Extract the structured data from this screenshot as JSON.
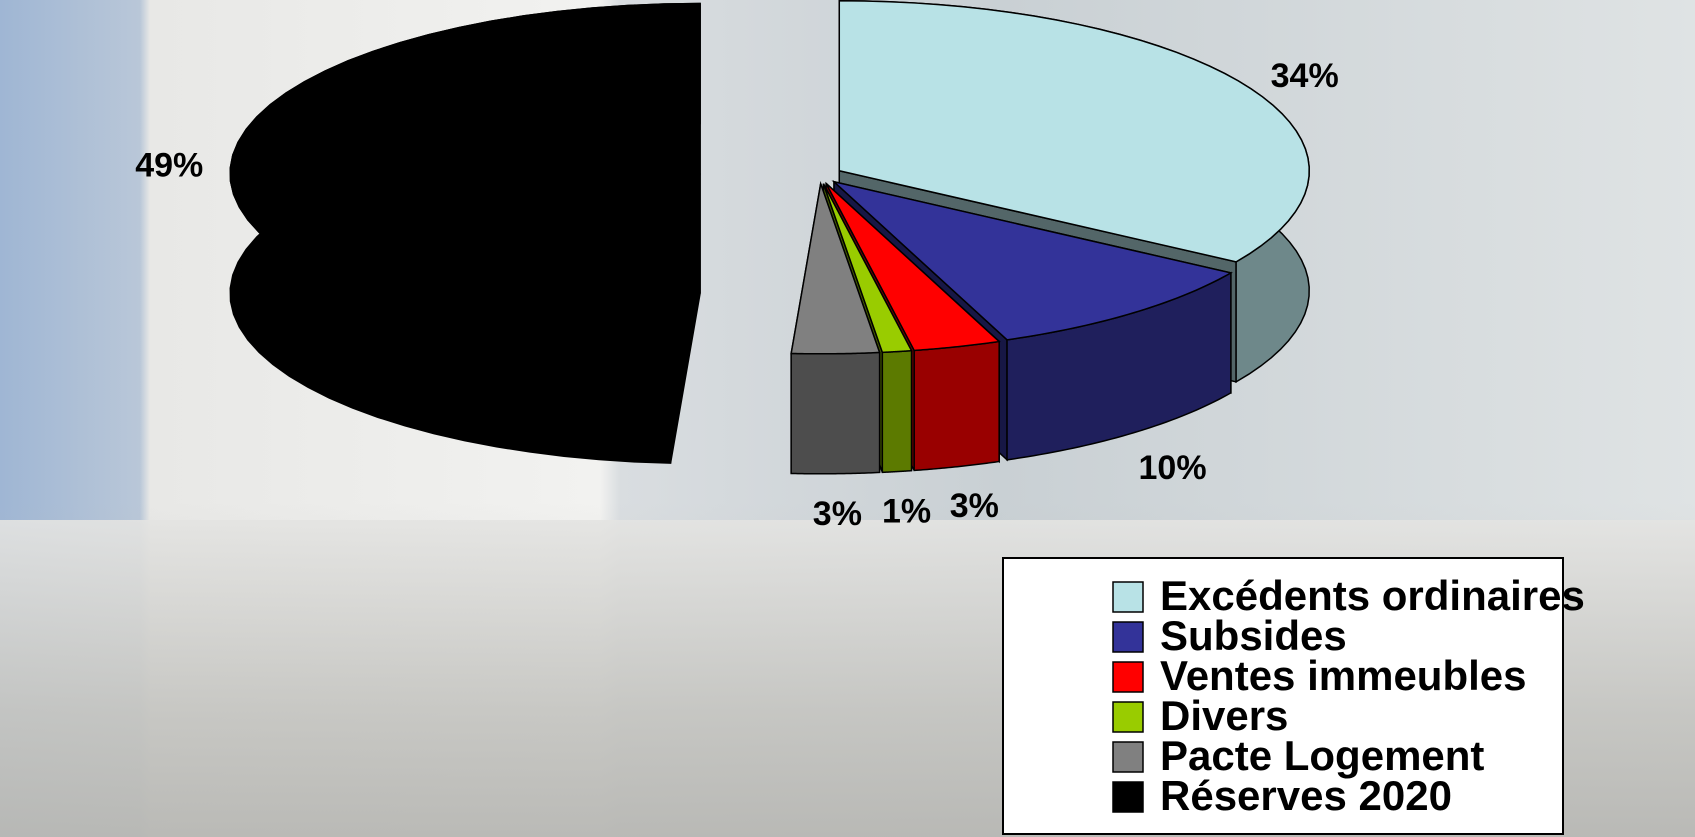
{
  "chart_data": {
    "type": "pie",
    "categories": [
      "Excédents ordinaires",
      "Subsides",
      "Ventes immeubles",
      "Divers",
      "Pacte Logement",
      "Réserves 2020"
    ],
    "values": [
      34,
      10,
      3,
      1,
      3,
      49
    ],
    "value_labels": [
      "34%",
      "10%",
      "3%",
      "1%",
      "3%",
      "49%"
    ],
    "colors": [
      "#b8e2e6",
      "#333399",
      "#ff0000",
      "#99cc00",
      "#808080",
      "#000000"
    ],
    "legend": "bottom-right"
  }
}
